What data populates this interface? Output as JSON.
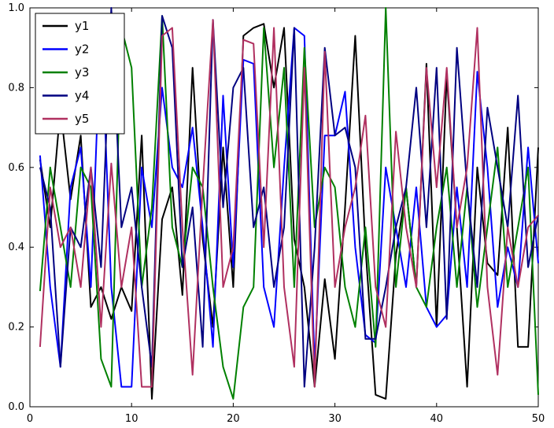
{
  "figure": {
    "background": "#ffffff",
    "frame_color": "#000000"
  },
  "chart_data": {
    "type": "line",
    "title": "",
    "xlabel": "",
    "ylabel": "",
    "xlim": [
      0,
      50
    ],
    "ylim": [
      0,
      1
    ],
    "grid": false,
    "x_ticks": [
      0,
      10,
      20,
      30,
      40,
      50
    ],
    "x_tick_labels": [
      "0",
      "10",
      "20",
      "30",
      "40",
      "50"
    ],
    "y_ticks": [
      0,
      0.2,
      0.4,
      0.6,
      0.8,
      1.0
    ],
    "y_tick_labels": [
      "0.0",
      "0.2",
      "0.4",
      "0.6",
      "0.8",
      "1.0"
    ],
    "legend": {
      "position": "upper-left",
      "entries": [
        "y1",
        "y2",
        "y3",
        "y4",
        "y5"
      ]
    },
    "x": [
      1,
      2,
      3,
      4,
      5,
      6,
      7,
      8,
      9,
      10,
      11,
      12,
      13,
      14,
      15,
      16,
      17,
      18,
      19,
      20,
      21,
      22,
      23,
      24,
      25,
      26,
      27,
      28,
      29,
      30,
      31,
      32,
      33,
      34,
      35,
      36,
      37,
      38,
      39,
      40,
      41,
      42,
      43,
      44,
      45,
      46,
      47,
      48,
      49,
      50
    ],
    "series": [
      {
        "name": "y1",
        "color": "#000000",
        "values": [
          0.62,
          0.45,
          0.75,
          0.52,
          0.68,
          0.25,
          0.3,
          0.22,
          0.3,
          0.24,
          0.68,
          0.02,
          0.47,
          0.55,
          0.28,
          0.85,
          0.42,
          0.2,
          0.65,
          0.3,
          0.93,
          0.95,
          0.96,
          0.8,
          0.95,
          0.42,
          0.3,
          0.05,
          0.32,
          0.12,
          0.5,
          0.93,
          0.4,
          0.03,
          0.02,
          0.38,
          0.55,
          0.3,
          0.86,
          0.2,
          0.83,
          0.45,
          0.05,
          0.6,
          0.36,
          0.33,
          0.7,
          0.15,
          0.15,
          0.65
        ]
      },
      {
        "name": "y2",
        "color": "#0000ff",
        "values": [
          0.63,
          0.3,
          0.1,
          0.55,
          0.65,
          0.3,
          0.97,
          0.3,
          0.05,
          0.05,
          0.6,
          0.45,
          0.8,
          0.6,
          0.55,
          0.7,
          0.45,
          0.15,
          0.78,
          0.35,
          0.87,
          0.86,
          0.3,
          0.2,
          0.6,
          0.95,
          0.93,
          0.1,
          0.68,
          0.68,
          0.79,
          0.4,
          0.18,
          0.16,
          0.6,
          0.45,
          0.3,
          0.55,
          0.25,
          0.2,
          0.23,
          0.55,
          0.3,
          0.84,
          0.6,
          0.25,
          0.4,
          0.3,
          0.65,
          0.36
        ]
      },
      {
        "name": "y3",
        "color": "#008000",
        "values": [
          0.29,
          0.6,
          0.45,
          0.3,
          0.6,
          0.55,
          0.12,
          0.05,
          0.95,
          0.85,
          0.3,
          0.5,
          0.98,
          0.45,
          0.35,
          0.6,
          0.55,
          0.3,
          0.1,
          0.02,
          0.25,
          0.3,
          0.95,
          0.6,
          0.85,
          0.3,
          0.9,
          0.45,
          0.6,
          0.55,
          0.3,
          0.2,
          0.45,
          0.15,
          1.0,
          0.3,
          0.55,
          0.3,
          0.25,
          0.45,
          0.6,
          0.3,
          0.55,
          0.25,
          0.45,
          0.65,
          0.3,
          0.45,
          0.6,
          0.03
        ]
      },
      {
        "name": "y4",
        "color": "#000080",
        "values": [
          0.6,
          0.5,
          0.1,
          0.45,
          0.4,
          0.6,
          0.35,
          1.0,
          0.45,
          0.55,
          0.3,
          0.1,
          0.98,
          0.9,
          0.35,
          0.5,
          0.15,
          0.97,
          0.5,
          0.8,
          0.85,
          0.45,
          0.55,
          0.3,
          0.45,
          0.95,
          0.05,
          0.4,
          0.9,
          0.68,
          0.7,
          0.6,
          0.17,
          0.17,
          0.3,
          0.45,
          0.55,
          0.8,
          0.45,
          0.85,
          0.22,
          0.9,
          0.55,
          0.3,
          0.75,
          0.6,
          0.45,
          0.78,
          0.35,
          0.48
        ]
      },
      {
        "name": "y5",
        "color": "#b03060",
        "values": [
          0.15,
          0.55,
          0.4,
          0.45,
          0.3,
          0.6,
          0.2,
          0.61,
          0.3,
          0.45,
          0.05,
          0.05,
          0.93,
          0.95,
          0.45,
          0.08,
          0.55,
          0.97,
          0.3,
          0.4,
          0.92,
          0.91,
          0.4,
          0.95,
          0.3,
          0.1,
          0.85,
          0.05,
          0.89,
          0.3,
          0.45,
          0.55,
          0.73,
          0.3,
          0.2,
          0.69,
          0.45,
          0.3,
          0.85,
          0.55,
          0.85,
          0.45,
          0.6,
          0.95,
          0.3,
          0.08,
          0.45,
          0.3,
          0.45,
          0.48
        ]
      }
    ]
  }
}
